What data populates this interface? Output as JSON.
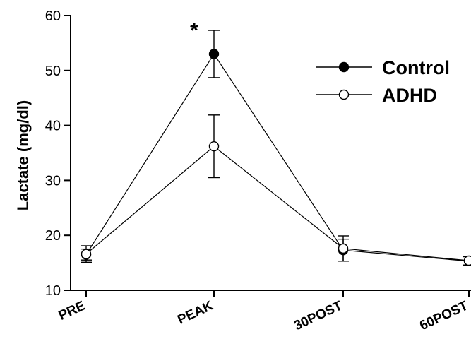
{
  "chart_data": {
    "type": "line",
    "title": "",
    "xlabel": "",
    "ylabel": "Lactate (mg/dl)",
    "ylim": [
      10,
      60
    ],
    "yticks": [
      10,
      20,
      30,
      40,
      50,
      60
    ],
    "categories": [
      "PRE",
      "PEAK",
      "30POST",
      "60POST"
    ],
    "series": [
      {
        "name": "Control",
        "marker": "filled-circle",
        "values": [
          16.5,
          53.0,
          17.3,
          15.3
        ],
        "error": [
          1.0,
          4.3,
          2.0,
          0.8
        ]
      },
      {
        "name": "ADHD",
        "marker": "open-circle",
        "values": [
          16.6,
          36.2,
          17.6,
          15.4
        ],
        "error": [
          1.5,
          5.7,
          2.3,
          0.8
        ]
      }
    ],
    "annotations": [
      {
        "text": "*",
        "category": "PEAK",
        "y": 57.8
      }
    ],
    "legend": {
      "position": "top-right"
    },
    "grid": false
  }
}
